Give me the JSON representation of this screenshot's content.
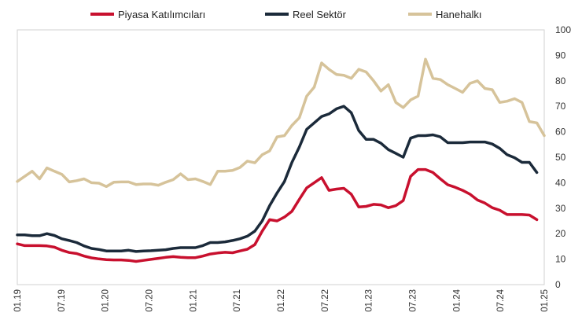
{
  "chart_data": {
    "type": "line",
    "title": "",
    "xlabel": "",
    "ylabel": "",
    "ylim": [
      0,
      100
    ],
    "y_ticks": [
      0,
      10,
      20,
      30,
      40,
      50,
      60,
      70,
      80,
      90,
      100
    ],
    "x_tick_labels": [
      "01.19",
      "07.19",
      "01.20",
      "07.20",
      "01.21",
      "07.21",
      "01.22",
      "07.22",
      "01.23",
      "07.23",
      "01.24",
      "07.24",
      "01.25"
    ],
    "x_tick_month_index": [
      0,
      6,
      12,
      18,
      24,
      30,
      36,
      42,
      48,
      54,
      60,
      66,
      72
    ],
    "grid": false,
    "legend_position": "top",
    "series": [
      {
        "name": "Piyasa Katılımcıları",
        "color": "#c8102e",
        "values": [
          16,
          15.3,
          15.3,
          15.3,
          15.2,
          14.7,
          13.5,
          12.6,
          12.2,
          11.2,
          10.5,
          10.1,
          9.8,
          9.7,
          9.7,
          9.5,
          9.1,
          9.5,
          9.9,
          10.3,
          10.7,
          11,
          10.7,
          10.6,
          10.6,
          11.2,
          12,
          12.4,
          12.7,
          12.5,
          13.2,
          13.9,
          15.7,
          21,
          25.5,
          25,
          26.5,
          28.8,
          33.5,
          38,
          40,
          42,
          37,
          37.5,
          37.8,
          35.5,
          30.5,
          30.7,
          31.5,
          31.3,
          30.2,
          31,
          33,
          42.5,
          45.2,
          45.2,
          44,
          41.5,
          39.2,
          38.2,
          37,
          35.5,
          33.2,
          32,
          30.2,
          29.2,
          27.5,
          27.5,
          27.5,
          27.3,
          25.5
        ]
      },
      {
        "name": "Reel Sektör",
        "color": "#1b2a3a",
        "values": [
          19.5,
          19.5,
          19.2,
          19.2,
          20,
          19.3,
          18,
          17.3,
          16.5,
          15.2,
          14.2,
          13.8,
          13.2,
          13.2,
          13.2,
          13.5,
          13,
          13.2,
          13.3,
          13.5,
          13.7,
          14.2,
          14.5,
          14.5,
          14.5,
          15.3,
          16.5,
          16.5,
          16.8,
          17.3,
          18,
          19,
          21,
          25,
          31,
          36,
          40.5,
          48,
          54,
          61,
          63.5,
          66,
          67,
          69,
          70,
          67.5,
          60.5,
          57,
          57,
          55.5,
          53,
          51.5,
          50,
          57.5,
          58.5,
          58.5,
          58.8,
          58,
          55.7,
          55.7,
          55.7,
          56,
          56,
          56,
          55.2,
          53.5,
          51,
          49.8,
          48,
          48,
          44
        ]
      },
      {
        "name": "Hanehalkı",
        "color": "#d6c39a",
        "values": [
          40.5,
          42.5,
          44.5,
          41.5,
          45.8,
          44.5,
          43.3,
          40.3,
          40.8,
          41.5,
          40,
          39.8,
          38.5,
          40.2,
          40.3,
          40.3,
          39.3,
          39.5,
          39.5,
          39,
          40.2,
          41.2,
          43.5,
          41.2,
          41.5,
          40.5,
          39.3,
          44.5,
          44.5,
          44.8,
          46,
          48.5,
          47.8,
          51,
          52.5,
          58,
          58.5,
          62.5,
          65.5,
          74,
          77.5,
          87,
          84.5,
          82.5,
          82.2,
          81,
          84.5,
          83.5,
          80,
          76,
          78.5,
          71.5,
          69.5,
          72.5,
          74,
          88.5,
          81,
          80.5,
          78.5,
          77,
          75.5,
          79,
          80,
          77,
          76.5,
          71.5,
          72,
          73,
          71.5,
          64,
          63.5,
          58.5
        ]
      }
    ]
  }
}
